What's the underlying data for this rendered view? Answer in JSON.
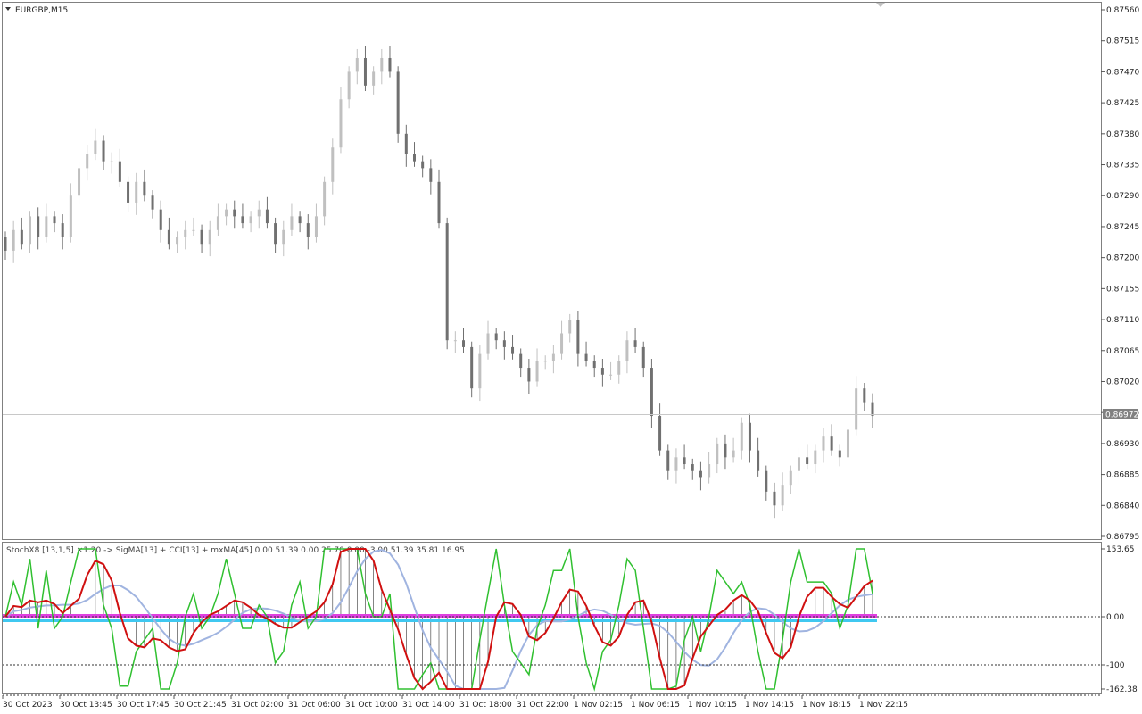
{
  "chart_data": {
    "type": "candlestick",
    "symbol": "EURGBP,M15",
    "price_axis": {
      "ticks": [
        "0.87560",
        "0.87515",
        "0.87470",
        "0.87425",
        "0.87380",
        "0.87335",
        "0.87290",
        "0.87245",
        "0.87200",
        "0.87155",
        "0.87110",
        "0.87065",
        "0.87020",
        "0.86975",
        "0.86930",
        "0.86885",
        "0.86840",
        "0.86795"
      ],
      "range": [
        0.86795,
        0.8756
      ],
      "current_price": "0.86972"
    },
    "indicator": {
      "label": "StochX8 [13,1,5] ×1.20 -> SigMA[13] + CCI[13] + mxMA[45] 0.00 51.39 0.00 25.70 0.00 -3.00 51.39 35.81 16.95",
      "ticks": [
        "153.65",
        "0.00",
        "-100",
        "-162.38"
      ],
      "range": [
        -162.38,
        153.65
      ]
    },
    "time_axis": {
      "labels": [
        "30 Oct 2023",
        "30 Oct 13:45",
        "30 Oct 17:45",
        "30 Oct 21:45",
        "31 Oct 02:00",
        "31 Oct 06:00",
        "31 Oct 10:00",
        "31 Oct 14:00",
        "31 Oct 18:00",
        "31 Oct 22:00",
        "1 Nov 02:15",
        "1 Nov 06:15",
        "1 Nov 10:15",
        "1 Nov 14:15",
        "1 Nov 18:15",
        "1 Nov 22:15"
      ]
    },
    "closes": [
      0.8721,
      0.8724,
      0.8722,
      0.8726,
      0.8723,
      0.8726,
      0.8725,
      0.8723,
      0.8729,
      0.8733,
      0.8735,
      0.8737,
      0.8734,
      0.8734,
      0.8731,
      0.8728,
      0.8731,
      0.8729,
      0.8727,
      0.8724,
      0.8722,
      0.8723,
      0.8724,
      0.8724,
      0.8722,
      0.8724,
      0.8726,
      0.8727,
      0.8726,
      0.8725,
      0.8726,
      0.8727,
      0.8725,
      0.8722,
      0.8724,
      0.8726,
      0.8725,
      0.8723,
      0.8726,
      0.8731,
      0.8736,
      0.8743,
      0.8747,
      0.8749,
      0.8745,
      0.8747,
      0.8749,
      0.8747,
      0.8738,
      0.8735,
      0.8734,
      0.8733,
      0.8731,
      0.8725,
      0.8708,
      0.8708,
      0.8707,
      0.8701,
      0.8706,
      0.8709,
      0.8708,
      0.8707,
      0.8706,
      0.8704,
      0.8702,
      0.8705,
      0.8705,
      0.8706,
      0.8709,
      0.8711,
      0.8706,
      0.8705,
      0.8704,
      0.8703,
      0.8703,
      0.8705,
      0.8708,
      0.8707,
      0.8704,
      0.8697,
      0.8692,
      0.8689,
      0.8691,
      0.869,
      0.8689,
      0.8688,
      0.869,
      0.8693,
      0.8691,
      0.8692,
      0.8696,
      0.8692,
      0.8689,
      0.8686,
      0.8684,
      0.8687,
      0.8689,
      0.8691,
      0.869,
      0.8692,
      0.8694,
      0.8692,
      0.8691,
      0.8695,
      0.8701,
      0.8699,
      0.8697
    ]
  }
}
